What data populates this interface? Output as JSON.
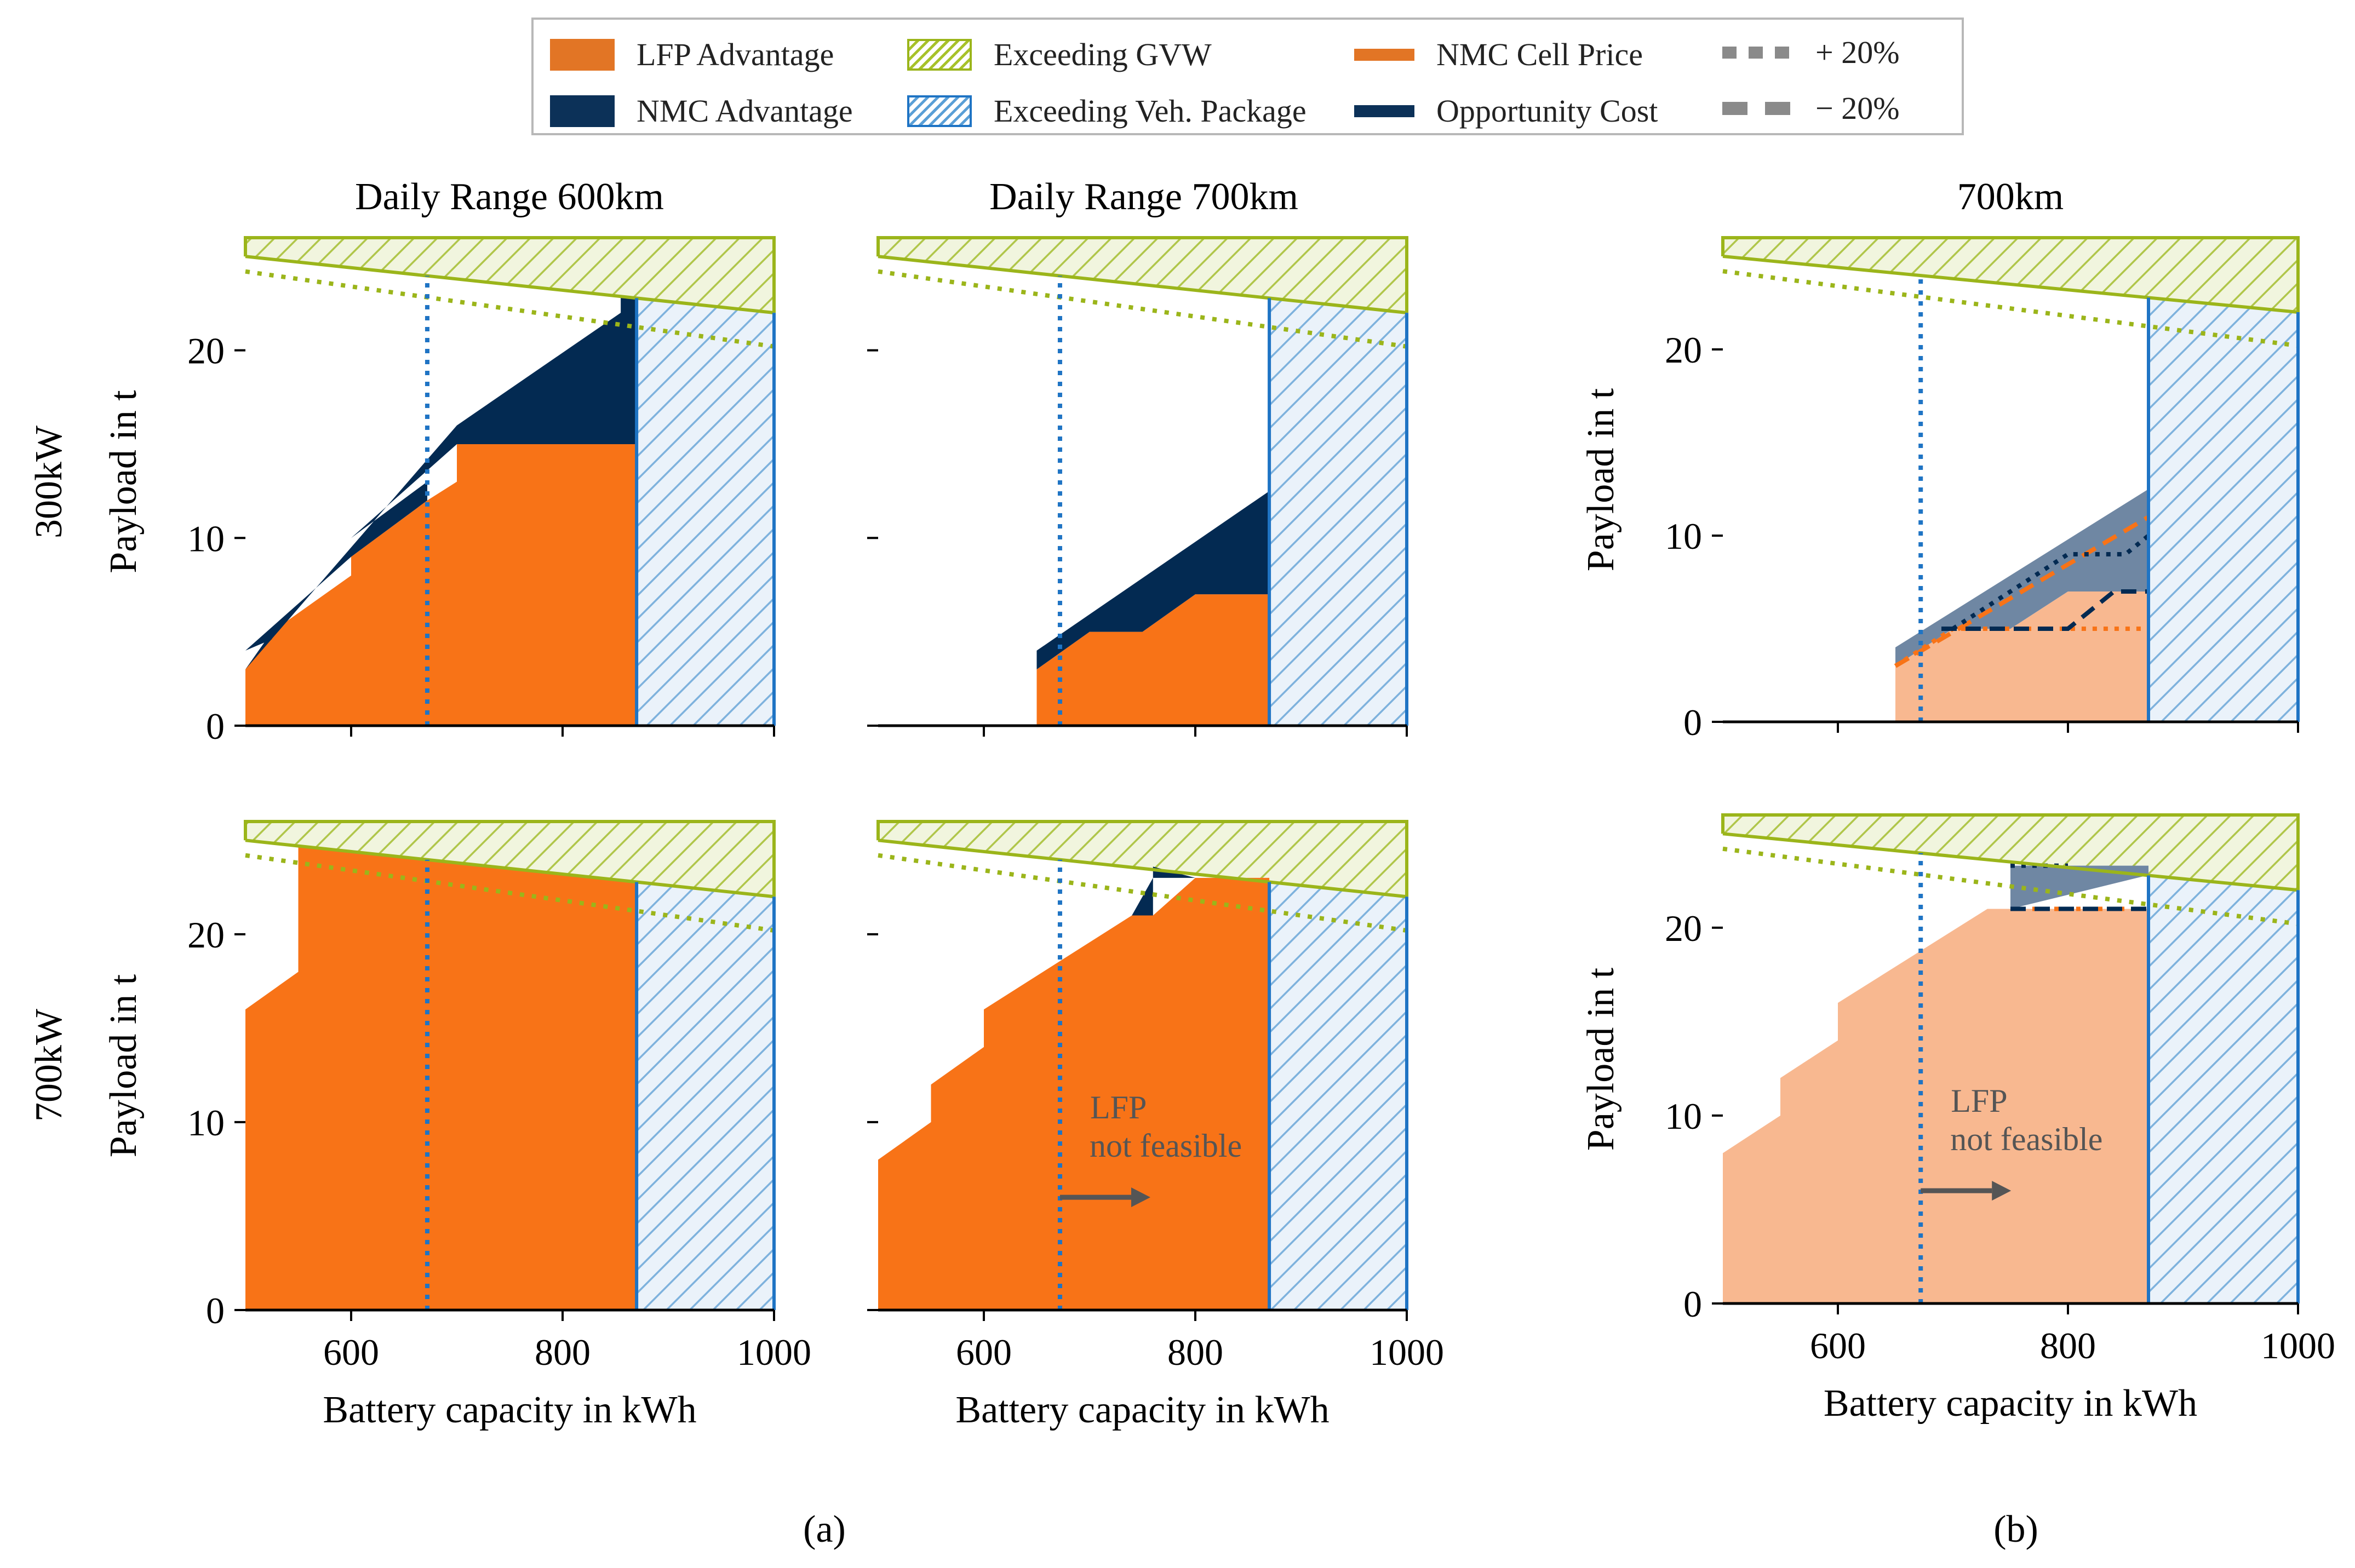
{
  "legend": {
    "lfp_advantage": "LFP Advantage",
    "nmc_advantage": "NMC Advantage",
    "exceeding_gvw": "Exceeding GVW",
    "exceeding_package": "Exceeding Veh. Package",
    "nmc_cell_price": "NMC Cell Price",
    "opportunity_cost": "Opportunity Cost",
    "plus20": "+ 20%",
    "minus20": "− 20%"
  },
  "colors": {
    "lfp": "#f87317",
    "lfp_light": "#f8b890",
    "nmc": "#032a52",
    "nmc_sens": "#6f87a3",
    "gvw": "#9bb51a",
    "package": "#1f74c4",
    "axis": "#000000"
  },
  "row_labels": [
    "300kW",
    "700kW"
  ],
  "panel_titles": [
    "Daily Range 600km",
    "Daily Range 700km",
    "700km"
  ],
  "ylabel": "Payload in t",
  "xlabel": "Battery capacity in kWh",
  "xticks": [
    600,
    800,
    1000
  ],
  "yticks": [
    0,
    10,
    20
  ],
  "xlim": [
    500,
    1000
  ],
  "ylim": [
    0,
    26
  ],
  "annotation": "LFP\nnot feasible",
  "panel_labels": [
    "(a)",
    "(b)"
  ],
  "chart_data": [
    {
      "type": "area",
      "title": "Daily Range 600km",
      "row": "300kW",
      "xlabel": "",
      "ylabel": "Payload in t",
      "xlim": [
        500,
        1000
      ],
      "ylim": [
        0,
        26
      ],
      "gvw_limit": {
        "x": [
          500,
          1000
        ],
        "y": [
          25,
          22
        ]
      },
      "gvw_limit_dotted": {
        "x": [
          500,
          1000
        ],
        "y": [
          24.2,
          20.2
        ]
      },
      "package_limit_kwh": 870,
      "reference_kwh": 672,
      "lfp_advantage": {
        "x": [
          500,
          500,
          525,
          600,
          600,
          672,
          700,
          700,
          870,
          870
        ],
        "y": [
          0,
          3,
          5,
          8,
          9,
          12,
          13,
          15,
          15,
          0
        ]
      },
      "nmc_advantage": {
        "x": [
          500,
          525,
          525,
          500,
          600,
          672,
          672,
          600,
          700,
          870,
          870,
          855,
          855,
          700
        ],
        "y": [
          3,
          5,
          4.6,
          4,
          9,
          12,
          13,
          10,
          15,
          15,
          22.8,
          22.8,
          22,
          16
        ]
      }
    },
    {
      "type": "area",
      "title": "Daily Range 700km",
      "row": "300kW",
      "xlabel": "",
      "ylabel": "",
      "xlim": [
        500,
        1000
      ],
      "ylim": [
        0,
        26
      ],
      "gvw_limit": {
        "x": [
          500,
          1000
        ],
        "y": [
          25,
          22
        ]
      },
      "gvw_limit_dotted": {
        "x": [
          500,
          1000
        ],
        "y": [
          24.2,
          20.2
        ]
      },
      "package_limit_kwh": 870,
      "reference_kwh": 672,
      "lfp_advantage": {
        "x": [
          650,
          650,
          700,
          750,
          800,
          870,
          870
        ],
        "y": [
          0,
          3,
          5,
          5,
          7,
          7,
          0
        ]
      },
      "nmc_advantage": {
        "x": [
          650,
          870,
          870,
          800,
          750,
          700,
          650
        ],
        "y": [
          4,
          12.5,
          7,
          7,
          5,
          5,
          3
        ]
      }
    },
    {
      "type": "area",
      "title": "700km",
      "row": "300kW",
      "sensitivity": true,
      "xlabel": "",
      "ylabel": "Payload in t",
      "xlim": [
        500,
        1000
      ],
      "ylim": [
        0,
        26
      ],
      "gvw_limit": {
        "x": [
          500,
          1000
        ],
        "y": [
          25,
          22
        ]
      },
      "gvw_limit_dotted": {
        "x": [
          500,
          1000
        ],
        "y": [
          24.2,
          20.2
        ]
      },
      "package_limit_kwh": 870,
      "reference_kwh": 672,
      "lfp_advantage": {
        "x": [
          650,
          650,
          700,
          750,
          800,
          870,
          870
        ],
        "y": [
          0,
          3,
          5,
          5,
          7,
          7,
          0
        ]
      },
      "nmc_advantage_range": {
        "x": [
          650,
          870,
          870,
          800,
          750,
          700,
          650
        ],
        "y": [
          4,
          12.5,
          7,
          7,
          5,
          5,
          3
        ]
      },
      "nmc_cell_price_plus20": {
        "x": [
          650,
          700,
          870
        ],
        "y": [
          3,
          5,
          5
        ]
      },
      "nmc_cell_price_minus20": {
        "x": [
          650,
          870
        ],
        "y": [
          3,
          11
        ]
      },
      "opportunity_cost_plus20": {
        "x": [
          700,
          800,
          850,
          870
        ],
        "y": [
          5,
          9,
          9,
          10
        ]
      },
      "opportunity_cost_minus20": {
        "x": [
          690,
          800,
          840,
          870
        ],
        "y": [
          5,
          5,
          7,
          7
        ]
      }
    },
    {
      "type": "area",
      "title": "",
      "row": "700kW",
      "xlabel": "Battery capacity in kWh",
      "ylabel": "Payload in t",
      "xlim": [
        500,
        1000
      ],
      "ylim": [
        0,
        26
      ],
      "gvw_limit": {
        "x": [
          500,
          1000
        ],
        "y": [
          25,
          22
        ]
      },
      "gvw_limit_dotted": {
        "x": [
          500,
          1000
        ],
        "y": [
          24.2,
          20.2
        ]
      },
      "package_limit_kwh": 870,
      "reference_kwh": 672,
      "lfp_advantage": {
        "x": [
          500,
          500,
          550,
          550,
          870,
          870
        ],
        "y": [
          0,
          16,
          18,
          24.7,
          22.8,
          0
        ]
      }
    },
    {
      "type": "area",
      "title": "",
      "row": "700kW",
      "xlabel": "Battery capacity in kWh",
      "ylabel": "",
      "xlim": [
        500,
        1000
      ],
      "ylim": [
        0,
        26
      ],
      "gvw_limit": {
        "x": [
          500,
          1000
        ],
        "y": [
          25,
          22
        ]
      },
      "gvw_limit_dotted": {
        "x": [
          500,
          1000
        ],
        "y": [
          24.2,
          20.2
        ]
      },
      "package_limit_kwh": 870,
      "reference_kwh": 672,
      "lfp_advantage": {
        "x": [
          500,
          500,
          550,
          550,
          600,
          600,
          740,
          760,
          800,
          870,
          870
        ],
        "y": [
          0,
          8,
          10,
          12,
          14,
          16,
          21,
          21,
          23,
          23,
          0
        ]
      },
      "nmc_advantage": {
        "x": [
          740,
          760,
          760,
          800,
          760,
          740
        ],
        "y": [
          21,
          21,
          23.6,
          23,
          23,
          21
        ]
      },
      "annotation": "LFP\nnot feasible"
    },
    {
      "type": "area",
      "title": "",
      "row": "700kW",
      "sensitivity": true,
      "xlabel": "Battery capacity in kWh",
      "ylabel": "Payload in t",
      "xlim": [
        500,
        1000
      ],
      "ylim": [
        0,
        26
      ],
      "gvw_limit": {
        "x": [
          500,
          1000
        ],
        "y": [
          25,
          22
        ]
      },
      "gvw_limit_dotted": {
        "x": [
          500,
          1000
        ],
        "y": [
          24.2,
          20.2
        ]
      },
      "package_limit_kwh": 870,
      "reference_kwh": 672,
      "lfp_advantage": {
        "x": [
          500,
          500,
          550,
          550,
          600,
          600,
          730,
          750,
          870,
          870
        ],
        "y": [
          0,
          8,
          10,
          12,
          14,
          16,
          21,
          21,
          21,
          0
        ]
      },
      "nmc_advantage_range": {
        "x": [
          725,
          750,
          750,
          870,
          870,
          750
        ],
        "y": [
          21,
          21,
          23.3,
          23.3,
          22.8,
          21
        ]
      },
      "nmc_cell_price_plus20": {
        "x": [
          750,
          870
        ],
        "y": [
          21,
          21
        ]
      },
      "nmc_cell_price_minus20": {
        "x": [
          750,
          870
        ],
        "y": [
          21,
          21
        ]
      },
      "opportunity_cost_plus20": {
        "x": [
          750,
          800
        ],
        "y": [
          23.3,
          23.3
        ]
      },
      "opportunity_cost_minus20": {
        "x": [
          750,
          870
        ],
        "y": [
          21,
          21
        ]
      },
      "annotation": "LFP\nnot feasible"
    }
  ]
}
